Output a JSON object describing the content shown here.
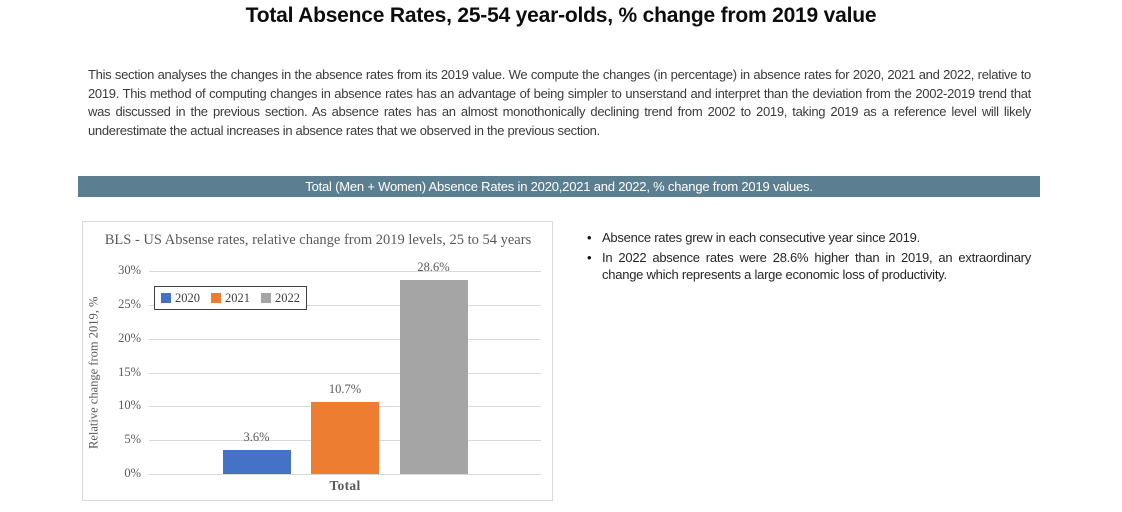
{
  "page": {
    "title": "Total Absence Rates, 25-54 year-olds, % change from 2019 value",
    "intro": "This section analyses the changes in the absence rates from its 2019 value. We compute the changes (in percentage) in absence rates for 2020, 2021 and 2022, relative to 2019. This method of computing changes in absence rates has an advantage of being simpler to unserstand and interpret than the deviation from the 2002-2019 trend that was discussed in the previous section. As absence rates has an almost monothonically declining trend from 2002 to 2019, taking 2019 as a reference level will likely underestimate the actual increases in absence rates that we observed in the previous section.",
    "banner": "Total (Men + Women) Absence Rates in 2020,2021 and 2022, % change from 2019 values.",
    "banner_bg": "#5b7f90",
    "bullets": [
      "Absence rates grew in each consecutive year since 2019.",
      "In 2022 absence rates were 28.6% higher than in 2019, an extraordinary change which represents a large economic loss of productivity."
    ]
  },
  "chart_data": {
    "type": "bar",
    "title": "BLS - US Absense rates, relative change from 2019 levels, 25 to 54 years",
    "categories": [
      "Total"
    ],
    "series": [
      {
        "name": "2020",
        "color": "#4472C4",
        "values": [
          3.6
        ]
      },
      {
        "name": "2021",
        "color": "#ED7D31",
        "values": [
          10.7
        ]
      },
      {
        "name": "2022",
        "color": "#A5A5A5",
        "values": [
          28.6
        ]
      }
    ],
    "value_labels": [
      "3.6%",
      "10.7%",
      "28.6%"
    ],
    "xlabel": "",
    "ylabel": "Relative change from 2019, %",
    "ylim": [
      0,
      30
    ],
    "ytick_step": 5,
    "ytick_suffix": "%",
    "grid": true,
    "gridline_color": "#d9d9d9",
    "legend_position": "inside-top-left",
    "legend_entries": [
      "2020",
      "2021",
      "2022"
    ]
  }
}
